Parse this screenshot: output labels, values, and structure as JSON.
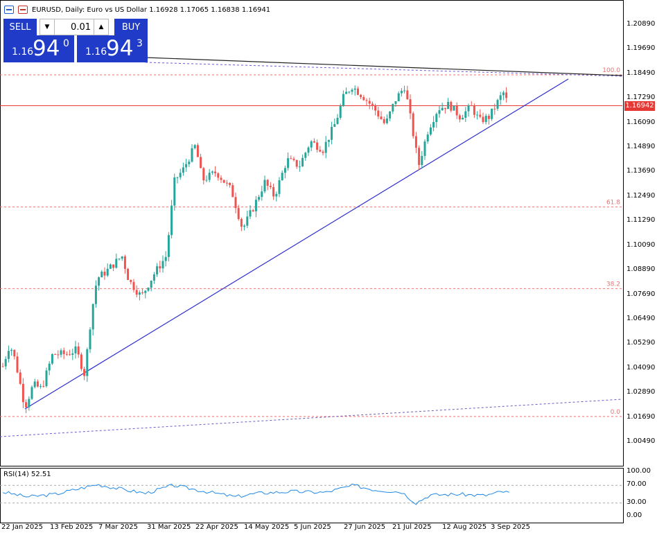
{
  "header": {
    "symbol_info": "EURUSD, Daily:  Euro vs US Dollar  1.16928 1.17065 1.16838 1.16941"
  },
  "trade_panel": {
    "sell_label": "SELL",
    "buy_label": "BUY",
    "lot_value": "0.01",
    "sell_price": {
      "small": "1.16",
      "big": "94",
      "sup": "0"
    },
    "buy_price": {
      "small": "1.16",
      "big": "94",
      "sup": "3"
    }
  },
  "price_axis": {
    "labels": [
      "1.20890",
      "1.19690",
      "1.18490",
      "1.17290",
      "1.16090",
      "1.14890",
      "1.13690",
      "1.12490",
      "1.11290",
      "1.10090",
      "1.08890",
      "1.07690",
      "1.06490",
      "1.05290",
      "1.04090",
      "1.02890",
      "1.01690",
      "1.00490"
    ],
    "current_price": "1.16942"
  },
  "fib_levels": [
    {
      "label": "100.0",
      "price": 1.1845
    },
    {
      "label": "61.8",
      "price": 1.1199
    },
    {
      "label": "38.2",
      "price": 1.08
    },
    {
      "label": "0.0",
      "price": 1.0175
    }
  ],
  "time_axis": {
    "labels": [
      "22 Jan 2025",
      "13 Feb 2025",
      "7 Mar 2025",
      "31 Mar 2025",
      "22 Apr 2025",
      "14 May 2025",
      "5 Jun 2025",
      "27 Jun 2025",
      "21 Jul 2025",
      "12 Aug 2025",
      "3 Sep 2025"
    ]
  },
  "rsi": {
    "label": "RSI(14) 52.51",
    "axis_labels": [
      "100.00",
      "70.00",
      "30.00",
      "0.00"
    ]
  },
  "colors": {
    "bull": "#26a69a",
    "bear": "#ef5350",
    "trend_blue": "#2d2ccf",
    "fib": "#e57373",
    "price_line": "#e53935",
    "rsi_line": "#1e88e5",
    "panel_blue": "#1f3bc7"
  }
}
